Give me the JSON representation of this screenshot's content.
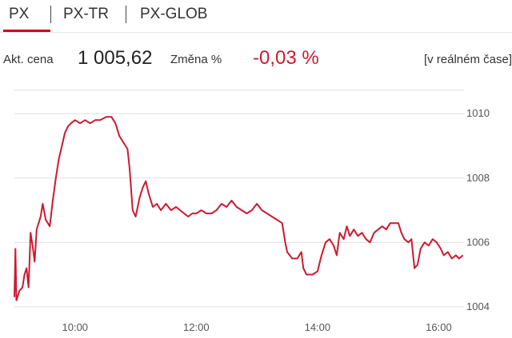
{
  "tabs": [
    {
      "label": "PX",
      "active": true
    },
    {
      "label": "PX-TR",
      "active": false
    },
    {
      "label": "PX-GLOB",
      "active": false
    }
  ],
  "quote": {
    "price_label": "Akt. cena",
    "price_value": "1 005,62",
    "change_label": "Změna %",
    "change_value": "-0,03 %",
    "realtime_label": "[v reálném čase]"
  },
  "colors": {
    "accent": "#d0021b",
    "line": "#cc1a30",
    "grid": "#e0e0e0",
    "change_negative": "#cc1a30"
  },
  "chart_data": {
    "type": "line",
    "title": "",
    "xlabel": "",
    "ylabel": "",
    "x_ticks": [
      "10:00",
      "12:00",
      "14:00",
      "16:00"
    ],
    "y_ticks": [
      1004,
      1006,
      1008,
      1010
    ],
    "xlim": [
      "09:00",
      "16:25"
    ],
    "ylim": [
      1003.7,
      1010.7
    ],
    "grid": "horizontal",
    "y_axis_side": "right",
    "series": [
      {
        "values": [
          [
            "09:00",
            1004.3
          ],
          [
            "09:01",
            1005.8
          ],
          [
            "09:02",
            1004.2
          ],
          [
            "09:05",
            1004.5
          ],
          [
            "09:08",
            1004.6
          ],
          [
            "09:10",
            1005.0
          ],
          [
            "09:12",
            1005.2
          ],
          [
            "09:14",
            1004.6
          ],
          [
            "09:16",
            1006.3
          ],
          [
            "09:18",
            1005.9
          ],
          [
            "09:20",
            1005.4
          ],
          [
            "09:22",
            1006.4
          ],
          [
            "09:26",
            1006.8
          ],
          [
            "09:28",
            1007.2
          ],
          [
            "09:31",
            1006.7
          ],
          [
            "09:35",
            1006.5
          ],
          [
            "09:38",
            1007.3
          ],
          [
            "09:41",
            1008.0
          ],
          [
            "09:44",
            1008.6
          ],
          [
            "09:47",
            1009.0
          ],
          [
            "09:50",
            1009.4
          ],
          [
            "09:53",
            1009.6
          ],
          [
            "09:56",
            1009.7
          ],
          [
            "10:00",
            1009.8
          ],
          [
            "10:05",
            1009.7
          ],
          [
            "10:10",
            1009.8
          ],
          [
            "10:15",
            1009.7
          ],
          [
            "10:20",
            1009.8
          ],
          [
            "10:25",
            1009.8
          ],
          [
            "10:31",
            1009.9
          ],
          [
            "10:36",
            1009.9
          ],
          [
            "10:40",
            1009.7
          ],
          [
            "10:44",
            1009.3
          ],
          [
            "10:48",
            1009.1
          ],
          [
            "10:52",
            1008.9
          ],
          [
            "10:54",
            1008.3
          ],
          [
            "10:57",
            1007.0
          ],
          [
            "11:00",
            1006.8
          ],
          [
            "11:04",
            1007.4
          ],
          [
            "11:07",
            1007.7
          ],
          [
            "11:10",
            1007.9
          ],
          [
            "11:13",
            1007.5
          ],
          [
            "11:17",
            1007.1
          ],
          [
            "11:21",
            1007.2
          ],
          [
            "11:25",
            1007.0
          ],
          [
            "11:30",
            1007.2
          ],
          [
            "11:35",
            1007.0
          ],
          [
            "11:40",
            1007.1
          ],
          [
            "11:44",
            1007.0
          ],
          [
            "11:48",
            1006.9
          ],
          [
            "11:52",
            1006.8
          ],
          [
            "11:56",
            1006.9
          ],
          [
            "12:00",
            1006.9
          ],
          [
            "12:05",
            1007.0
          ],
          [
            "12:10",
            1006.9
          ],
          [
            "12:15",
            1006.9
          ],
          [
            "12:20",
            1007.0
          ],
          [
            "12:25",
            1007.2
          ],
          [
            "12:30",
            1007.1
          ],
          [
            "12:35",
            1007.3
          ],
          [
            "12:40",
            1007.1
          ],
          [
            "12:45",
            1007.0
          ],
          [
            "12:50",
            1006.9
          ],
          [
            "12:55",
            1007.0
          ],
          [
            "13:00",
            1007.2
          ],
          [
            "13:05",
            1007.0
          ],
          [
            "13:10",
            1006.9
          ],
          [
            "13:15",
            1006.8
          ],
          [
            "13:20",
            1006.7
          ],
          [
            "13:25",
            1006.6
          ],
          [
            "13:28",
            1006.0
          ],
          [
            "13:30",
            1005.7
          ],
          [
            "13:35",
            1005.5
          ],
          [
            "13:40",
            1005.5
          ],
          [
            "13:44",
            1005.7
          ],
          [
            "13:46",
            1005.2
          ],
          [
            "13:49",
            1005.0
          ],
          [
            "13:55",
            1005.0
          ],
          [
            "14:00",
            1005.1
          ],
          [
            "14:04",
            1005.6
          ],
          [
            "14:08",
            1006.0
          ],
          [
            "14:12",
            1006.1
          ],
          [
            "14:16",
            1005.9
          ],
          [
            "14:19",
            1005.6
          ],
          [
            "14:22",
            1006.3
          ],
          [
            "14:26",
            1006.1
          ],
          [
            "14:29",
            1006.5
          ],
          [
            "14:32",
            1006.2
          ],
          [
            "14:36",
            1006.4
          ],
          [
            "14:40",
            1006.2
          ],
          [
            "14:44",
            1006.3
          ],
          [
            "14:48",
            1006.1
          ],
          [
            "14:52",
            1006.0
          ],
          [
            "14:56",
            1006.3
          ],
          [
            "15:00",
            1006.4
          ],
          [
            "15:04",
            1006.5
          ],
          [
            "15:08",
            1006.4
          ],
          [
            "15:12",
            1006.6
          ],
          [
            "15:16",
            1006.6
          ],
          [
            "15:20",
            1006.6
          ],
          [
            "15:23",
            1006.3
          ],
          [
            "15:26",
            1006.1
          ],
          [
            "15:30",
            1006.0
          ],
          [
            "15:33",
            1006.1
          ],
          [
            "15:36",
            1005.2
          ],
          [
            "15:39",
            1005.3
          ],
          [
            "15:42",
            1005.8
          ],
          [
            "15:46",
            1006.0
          ],
          [
            "15:50",
            1005.9
          ],
          [
            "15:54",
            1006.1
          ],
          [
            "15:58",
            1006.0
          ],
          [
            "16:02",
            1005.8
          ],
          [
            "16:05",
            1005.6
          ],
          [
            "16:09",
            1005.7
          ],
          [
            "16:13",
            1005.5
          ],
          [
            "16:17",
            1005.6
          ],
          [
            "16:20",
            1005.5
          ],
          [
            "16:24",
            1005.6
          ]
        ]
      }
    ]
  }
}
